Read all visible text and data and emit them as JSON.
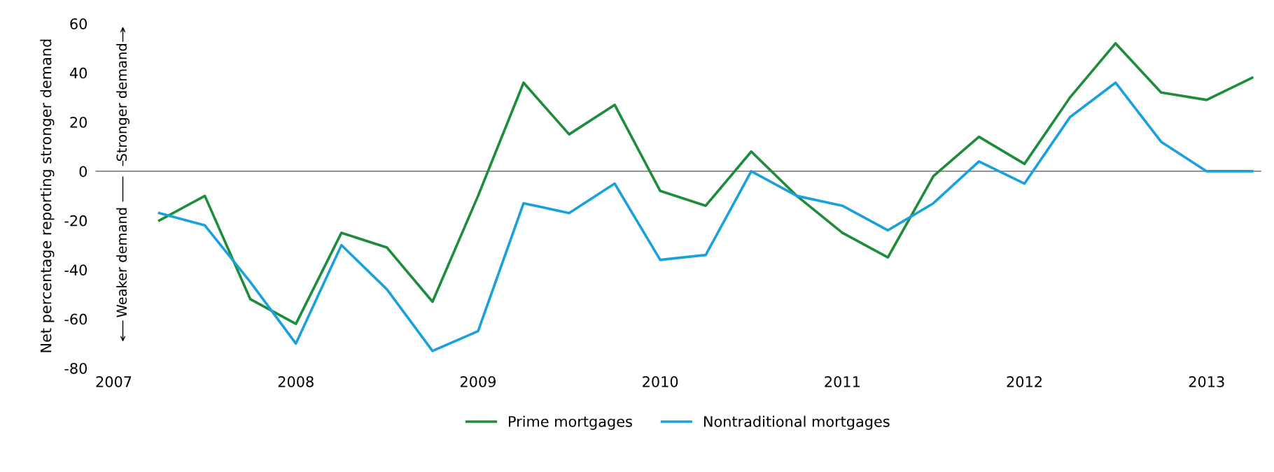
{
  "chart_data": {
    "type": "line",
    "ylabel": "Net percentage reporting stronger demand",
    "x": [
      2007.25,
      2007.5,
      2007.75,
      2008.0,
      2008.25,
      2008.5,
      2008.75,
      2009.0,
      2009.25,
      2009.5,
      2009.75,
      2010.0,
      2010.25,
      2010.5,
      2010.75,
      2011.0,
      2011.25,
      2011.5,
      2011.75,
      2012.0,
      2012.25,
      2012.5,
      2012.75,
      2013.0,
      2013.25
    ],
    "series": [
      {
        "name": "Prime mortgages",
        "color": "#1e8c3a",
        "values": [
          -20,
          -10,
          -52,
          -62,
          -25,
          -31,
          -53,
          -10,
          36,
          15,
          27,
          -8,
          -14,
          8,
          -10,
          -25,
          -35,
          -2,
          14,
          3,
          30,
          52,
          32,
          29,
          38
        ]
      },
      {
        "name": "Nontraditional mortgages",
        "color": "#1aa1db",
        "values": [
          -17,
          -22,
          -45,
          -70,
          -30,
          -48,
          -73,
          -65,
          -13,
          -17,
          -5,
          -36,
          -34,
          0,
          -10,
          -14,
          -24,
          -13,
          4,
          -5,
          22,
          36,
          12,
          0,
          0
        ]
      }
    ],
    "xlim": [
      2006.9,
      2013.3
    ],
    "xticks": [
      2007,
      2008,
      2009,
      2010,
      2011,
      2012,
      2013
    ],
    "ylim": [
      -80,
      60
    ],
    "yticks": [
      -80,
      -60,
      -40,
      -20,
      0,
      20,
      40,
      60
    ],
    "ref_lines": [
      {
        "axis": "y",
        "value": 0,
        "color": "#555555"
      }
    ],
    "annotations": [
      "Stronger demand",
      "Weaker demand"
    ],
    "grid": false,
    "legend": "bottom",
    "marker": "none",
    "line_style": "solid"
  }
}
